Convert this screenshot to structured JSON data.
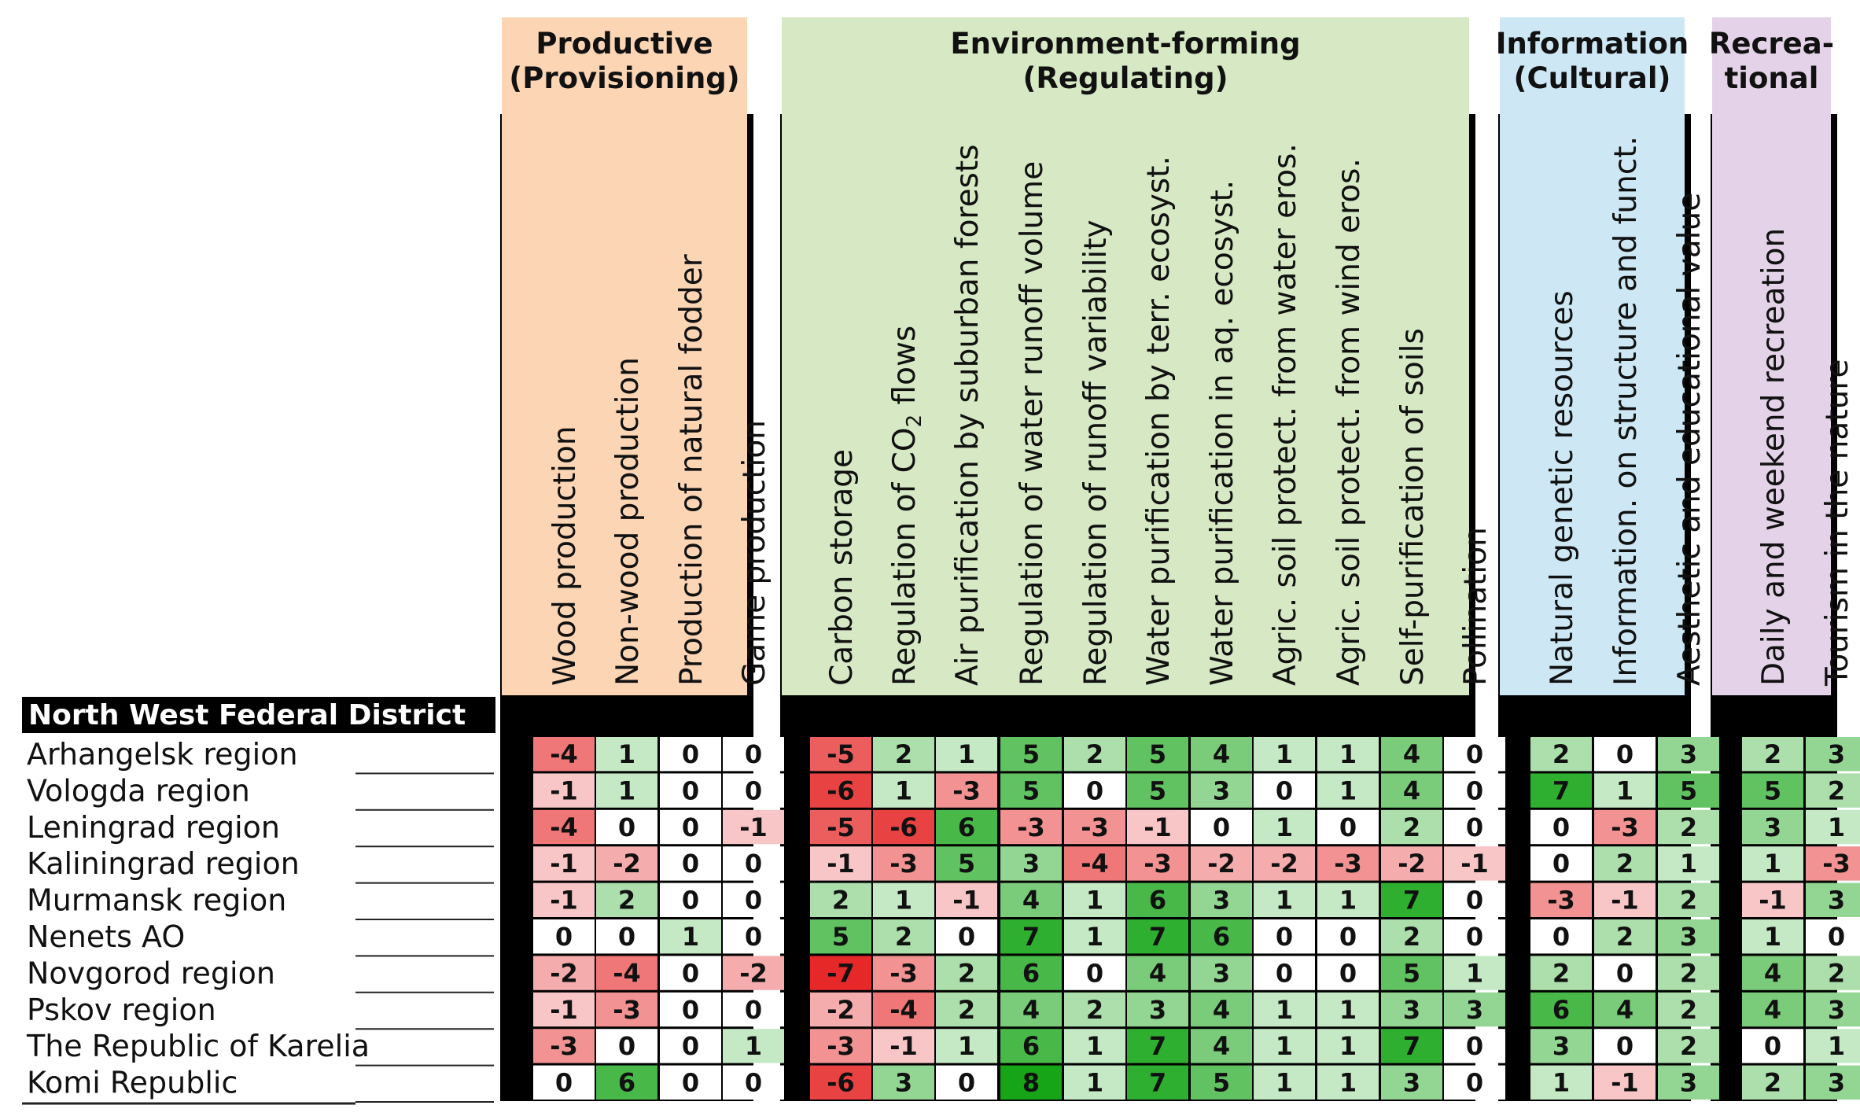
{
  "chart_data": {
    "type": "heatmap",
    "district": "North West Federal District",
    "groups": [
      {
        "title_lines": [
          "Productive",
          "(Provisioning)"
        ],
        "color": "#fcd5b5",
        "columns": [
          0,
          1,
          2,
          3
        ]
      },
      {
        "title_lines": [
          "Environment-forming",
          "(Regulating)"
        ],
        "color": "#d6e9c4",
        "columns": [
          4,
          5,
          6,
          7,
          8,
          9,
          10,
          11,
          12,
          13,
          14
        ]
      },
      {
        "title_lines": [
          "Information",
          "(Cultural)"
        ],
        "color": "#cde8f4",
        "columns": [
          15,
          16,
          17
        ]
      },
      {
        "title_lines": [
          "Recrea-",
          "tional"
        ],
        "color": "#e4d3e8",
        "columns": [
          18,
          19
        ]
      }
    ],
    "columns": [
      "Wood production",
      "Non-wood  production",
      "Production of natural fodder",
      "Game production",
      "Carbon storage",
      "Regulation of CO2 flows",
      "Air purification by suburban forests",
      "Regulation of water runoff volume",
      "Regulation of runoff variability",
      "Water purification by terr. ecosyst.",
      "Water purification in aq. ecosyst.",
      "Agric. soil protect. from water eros.",
      "Agric. soil protect. from wind eros.",
      "Self-purification of soils",
      "Pollination",
      "Natural genetic resources",
      "Information. on structure and funct.",
      "Aesthetic and educational value",
      "Daily and  weekend recreation",
      "Tourism in the nature"
    ],
    "rows": [
      "Arhangelsk region",
      "Vologda region",
      "Leningrad region",
      "Kaliningrad region",
      "Murmansk region",
      "Nenets AO",
      "Novgorod region",
      "Pskov region",
      "The Republic of Karelia",
      "Komi Republic"
    ],
    "values": [
      [
        -4,
        1,
        0,
        0,
        -5,
        2,
        1,
        5,
        2,
        5,
        4,
        1,
        1,
        4,
        0,
        2,
        0,
        3,
        2,
        3
      ],
      [
        -1,
        1,
        0,
        0,
        -6,
        1,
        -3,
        5,
        0,
        5,
        3,
        0,
        1,
        4,
        0,
        7,
        1,
        5,
        5,
        2
      ],
      [
        -4,
        0,
        0,
        -1,
        -5,
        -6,
        6,
        -3,
        -3,
        -1,
        0,
        1,
        0,
        2,
        0,
        0,
        -3,
        2,
        3,
        1
      ],
      [
        -1,
        -2,
        0,
        0,
        -1,
        -3,
        5,
        3,
        -4,
        -3,
        -2,
        -2,
        -3,
        -2,
        -1,
        0,
        2,
        1,
        1,
        -3
      ],
      [
        -1,
        2,
        0,
        0,
        2,
        1,
        -1,
        4,
        1,
        6,
        3,
        1,
        1,
        7,
        0,
        -3,
        -1,
        2,
        -1,
        3
      ],
      [
        0,
        0,
        1,
        0,
        5,
        2,
        0,
        7,
        1,
        7,
        6,
        0,
        0,
        2,
        0,
        0,
        2,
        3,
        1,
        0
      ],
      [
        -2,
        -4,
        0,
        -2,
        -7,
        -3,
        2,
        6,
        0,
        4,
        3,
        0,
        0,
        5,
        1,
        2,
        0,
        2,
        4,
        2
      ],
      [
        -1,
        -3,
        0,
        0,
        -2,
        -4,
        2,
        4,
        2,
        3,
        4,
        1,
        1,
        3,
        3,
        6,
        4,
        2,
        4,
        3
      ],
      [
        -3,
        0,
        0,
        1,
        -3,
        -1,
        1,
        6,
        1,
        7,
        4,
        1,
        1,
        7,
        0,
        3,
        0,
        2,
        0,
        1
      ],
      [
        0,
        6,
        0,
        0,
        -6,
        3,
        0,
        8,
        1,
        7,
        5,
        1,
        1,
        3,
        0,
        1,
        -1,
        3,
        2,
        3
      ]
    ],
    "value_range": [
      -7,
      8
    ],
    "colors": {
      "positive": "#16a516",
      "negative": "#e62828",
      "neutral": "#ffffff",
      "frame": "#000000"
    }
  }
}
